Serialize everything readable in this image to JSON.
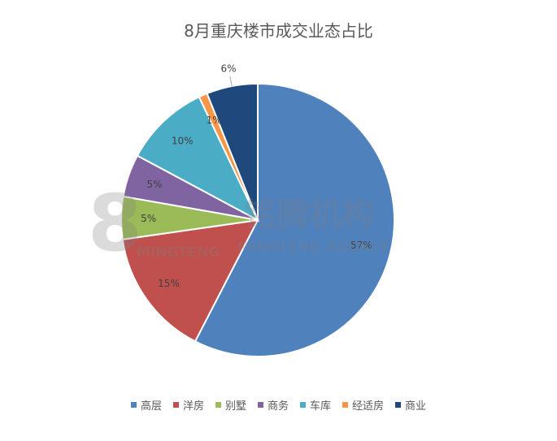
{
  "chart_data": {
    "type": "pie",
    "title": "8月重庆楼市成交业态占比",
    "categories": [
      "高层",
      "洋房",
      "别墅",
      "商务",
      "车库",
      "经适房",
      "商业"
    ],
    "values": [
      57,
      15,
      5,
      5,
      10,
      1,
      6
    ],
    "labels": [
      "57%",
      "15%",
      "5%",
      "5%",
      "10%",
      "1%",
      "6%"
    ],
    "colors": [
      "#4F81BD",
      "#C0504D",
      "#9BBB59",
      "#8064A2",
      "#4BACC6",
      "#F79646",
      "#1F497D"
    ],
    "legend_position": "bottom",
    "start": "12 o'clock",
    "direction": "clockwise"
  },
  "watermark": {
    "logo_number": "8",
    "cn_name": "铭腾机构",
    "en_left": "MINGTENG",
    "en_right": "MINGTENG AGENCY"
  }
}
